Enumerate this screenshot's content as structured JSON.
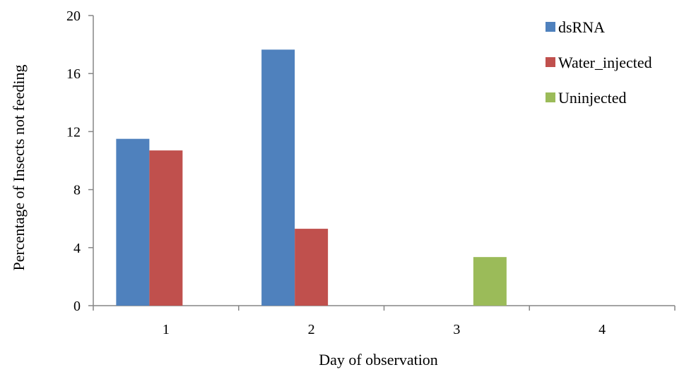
{
  "chart_data": {
    "type": "bar",
    "title": "",
    "xlabel": "Day of observation",
    "ylabel": "Percentage of Insects not feeding",
    "categories": [
      "1",
      "2",
      "3",
      "4"
    ],
    "ylim": [
      0,
      20
    ],
    "yticks": [
      0,
      4,
      8,
      12,
      16,
      20
    ],
    "grid": false,
    "legend_position": "top-right",
    "series": [
      {
        "name": "dsRNA",
        "color": "#4F81BD",
        "values": [
          11.5,
          17.65,
          0,
          0
        ]
      },
      {
        "name": "Water_injected",
        "color": "#C0504D",
        "values": [
          10.7,
          5.3,
          0,
          0
        ]
      },
      {
        "name": "Uninjected",
        "color": "#9BBB59",
        "values": [
          0,
          0,
          3.35,
          0
        ]
      }
    ]
  }
}
